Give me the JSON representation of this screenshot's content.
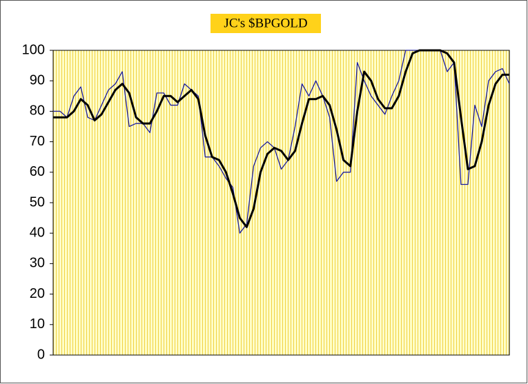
{
  "chart_data": {
    "type": "line",
    "title": "JC's $BPGOLD",
    "ylim": [
      0,
      100
    ],
    "yticks": [
      0,
      10,
      20,
      30,
      40,
      50,
      60,
      70,
      80,
      90,
      100
    ],
    "series": [
      {
        "name": null,
        "color": "#1a1a9e",
        "width": 1.3,
        "values": [
          80,
          80,
          78,
          85,
          88,
          78,
          77,
          82,
          87,
          89,
          93,
          75,
          76,
          76,
          73,
          86,
          86,
          82,
          82,
          89,
          87,
          85,
          65,
          65,
          62,
          58,
          55,
          40,
          43,
          62,
          68,
          70,
          68,
          61,
          64,
          75,
          89,
          85,
          90,
          85,
          78,
          57,
          60,
          60,
          96,
          90,
          85,
          82,
          79,
          85,
          90,
          100,
          100,
          100,
          100,
          100,
          100,
          93,
          96,
          56,
          56,
          82,
          75,
          90,
          93,
          94,
          89
        ]
      },
      {
        "name": null,
        "color": "#000000",
        "width": 3,
        "values": [
          78,
          78,
          78,
          80,
          84,
          82,
          77,
          79,
          83,
          87,
          89,
          86,
          78,
          76,
          76,
          80,
          85,
          85,
          83,
          85,
          87,
          84,
          72,
          65,
          64,
          60,
          53,
          45,
          42,
          48,
          60,
          66,
          68,
          67,
          64,
          67,
          76,
          84,
          84,
          85,
          82,
          74,
          64,
          62,
          80,
          93,
          90,
          84,
          81,
          81,
          85,
          93,
          99,
          100,
          100,
          100,
          100,
          99,
          96,
          78,
          61,
          62,
          70,
          82,
          89,
          92,
          92
        ]
      }
    ]
  }
}
